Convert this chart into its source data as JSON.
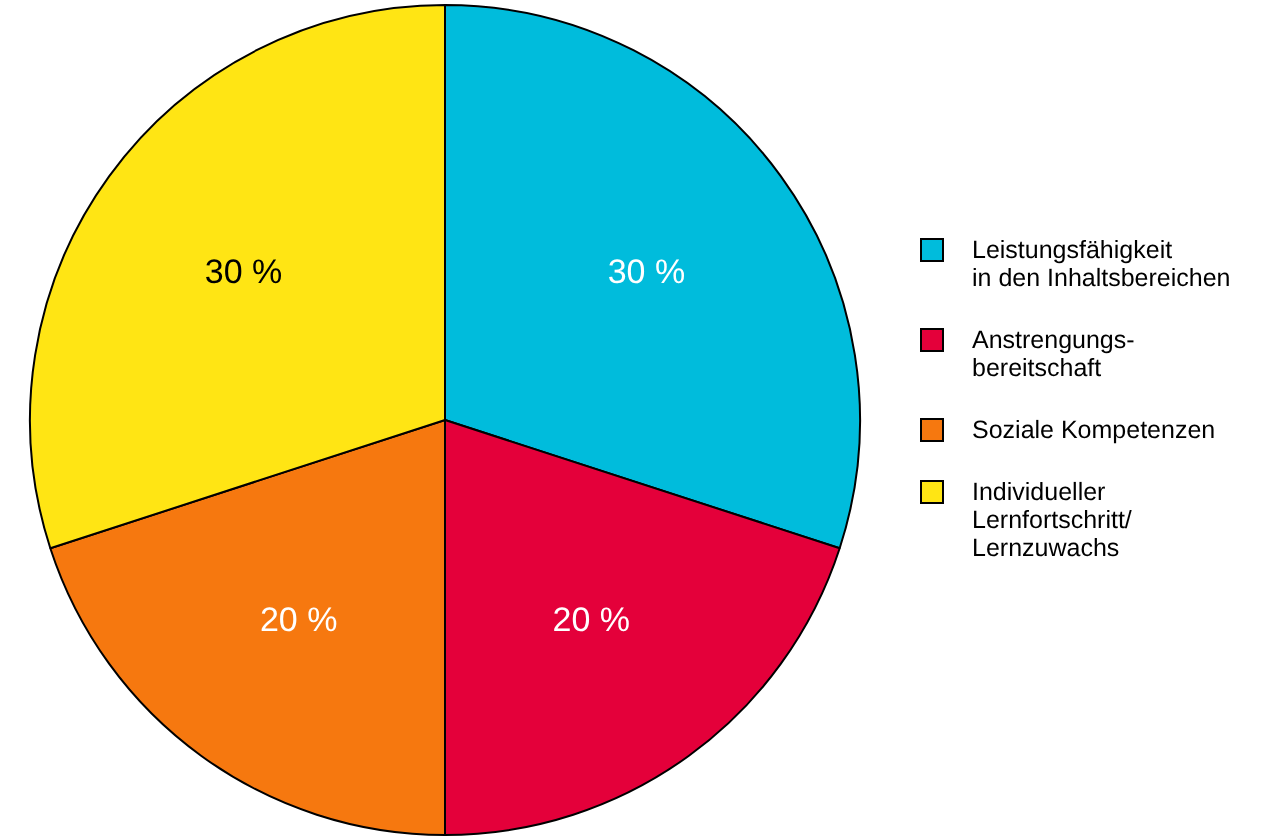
{
  "chart_data": {
    "type": "pie",
    "categories": [
      "Leistungsfähigkeit\nin den Inhaltsbereichen",
      "Anstrengungs-\nbereitschaft",
      "Soziale Kompetenzen",
      "Individueller\nLernfortschritt/\nLernzuwachs"
    ],
    "values": [
      30,
      20,
      20,
      30
    ],
    "colors": [
      "#00bcdc",
      "#e4003a",
      "#f6780f",
      "#ffe514"
    ],
    "value_labels": [
      "30 %",
      "20 %",
      "20 %",
      "30 %"
    ],
    "legend": "right"
  }
}
